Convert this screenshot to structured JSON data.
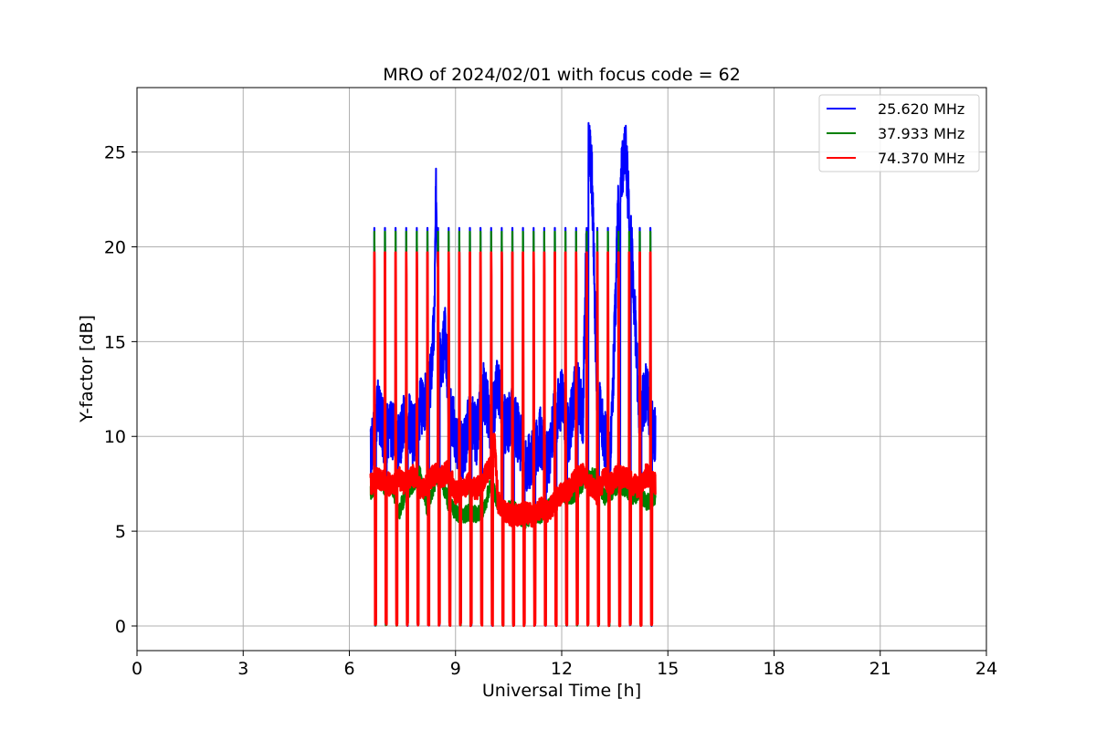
{
  "chart_data": {
    "type": "line",
    "title": "MRO of 2024/02/01 with focus code = 62",
    "xlabel": "Universal Time [h]",
    "ylabel": "Y-factor [dB]",
    "xlim": [
      0,
      24
    ],
    "ylim": [
      -1.3,
      28.4
    ],
    "xticks": [
      0,
      3,
      6,
      9,
      12,
      15,
      18,
      21,
      24
    ],
    "yticks": [
      0,
      5,
      10,
      15,
      20,
      25
    ],
    "grid": true,
    "legend_position": "top-right",
    "pulse_times_h": [
      6.7,
      7.0,
      7.3,
      7.6,
      7.9,
      8.2,
      8.5,
      8.8,
      9.1,
      9.4,
      9.7,
      10.0,
      10.3,
      10.6,
      10.9,
      11.2,
      11.5,
      11.8,
      12.1,
      12.4,
      12.7,
      13.0,
      13.3,
      13.6,
      13.9,
      14.2,
      14.5
    ],
    "series": [
      {
        "name": "25.620 MHz",
        "color": "#0000ff",
        "pulse_peak": 21.0,
        "x": [
          6.6,
          6.8,
          7.0,
          7.2,
          7.4,
          7.6,
          7.8,
          8.0,
          8.2,
          8.3,
          8.4,
          8.45,
          8.6,
          8.7,
          8.8,
          9.0,
          9.2,
          9.4,
          9.6,
          9.8,
          10.0,
          10.2,
          10.4,
          10.6,
          10.8,
          11.0,
          11.2,
          11.4,
          11.6,
          11.8,
          12.0,
          12.2,
          12.4,
          12.6,
          12.75,
          12.85,
          13.0,
          13.2,
          13.4,
          13.6,
          13.8,
          13.9,
          14.0,
          14.2,
          14.4,
          14.6
        ],
        "y": [
          9.0,
          11.5,
          10.0,
          10.5,
          9.5,
          11.5,
          10.0,
          11.5,
          12.0,
          13.0,
          16.0,
          23.0,
          13.0,
          16.0,
          12.0,
          10.0,
          9.0,
          11.0,
          10.0,
          12.5,
          10.5,
          13.0,
          10.5,
          11.0,
          10.0,
          8.5,
          9.0,
          10.0,
          8.5,
          11.0,
          12.0,
          10.0,
          13.0,
          11.0,
          25.5,
          24.0,
          12.0,
          10.0,
          9.5,
          22.0,
          25.5,
          22.0,
          19.0,
          11.0,
          12.5,
          10.0
        ]
      },
      {
        "name": "37.933 MHz",
        "color": "#008000",
        "pulse_peak": 20.8,
        "x": [
          6.6,
          6.8,
          7.0,
          7.2,
          7.4,
          7.6,
          7.8,
          8.0,
          8.2,
          8.4,
          8.6,
          8.8,
          9.0,
          9.2,
          9.4,
          9.6,
          9.8,
          10.0,
          10.2,
          10.4,
          10.6,
          10.8,
          11.0,
          11.2,
          11.4,
          11.6,
          11.8,
          12.0,
          12.2,
          12.4,
          12.6,
          12.8,
          13.0,
          13.2,
          13.4,
          13.6,
          13.8,
          14.0,
          14.2,
          14.4,
          14.6
        ],
        "y": [
          7.0,
          7.8,
          7.3,
          7.5,
          6.0,
          7.0,
          7.5,
          8.0,
          6.2,
          7.5,
          7.8,
          6.5,
          6.0,
          5.8,
          6.0,
          5.9,
          6.2,
          7.5,
          6.5,
          6.0,
          6.3,
          5.8,
          5.5,
          6.0,
          5.8,
          6.2,
          6.5,
          7.0,
          6.8,
          7.0,
          7.5,
          8.0,
          7.8,
          6.8,
          7.0,
          7.5,
          7.2,
          6.8,
          7.0,
          6.5,
          6.8
        ]
      },
      {
        "name": "74.370 MHz",
        "color": "#ff0000",
        "pulse_peak": 19.7,
        "x": [
          6.6,
          6.8,
          7.0,
          7.2,
          7.4,
          7.6,
          7.8,
          8.0,
          8.2,
          8.4,
          8.6,
          8.8,
          9.0,
          9.2,
          9.4,
          9.6,
          9.8,
          10.0,
          10.1,
          10.2,
          10.4,
          10.6,
          10.8,
          11.0,
          11.2,
          11.4,
          11.6,
          11.8,
          12.0,
          12.2,
          12.4,
          12.6,
          12.8,
          13.0,
          13.2,
          13.4,
          13.6,
          13.8,
          14.0,
          14.2,
          14.4,
          14.6
        ],
        "y": [
          7.5,
          7.8,
          7.6,
          7.4,
          7.8,
          7.5,
          8.0,
          7.2,
          7.5,
          8.0,
          7.8,
          8.2,
          7.0,
          7.3,
          7.5,
          7.2,
          7.8,
          8.5,
          9.8,
          6.5,
          6.0,
          5.8,
          5.9,
          6.0,
          5.8,
          6.2,
          6.0,
          6.5,
          7.0,
          7.2,
          7.8,
          8.0,
          7.5,
          7.0,
          7.8,
          7.5,
          8.0,
          7.8,
          7.5,
          7.2,
          8.0,
          7.5
        ]
      }
    ]
  }
}
